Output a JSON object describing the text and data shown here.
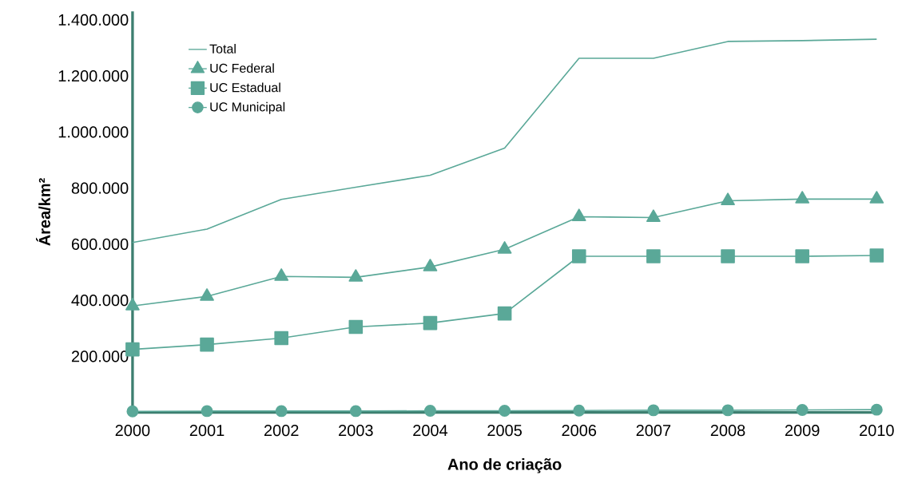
{
  "chart_data": {
    "type": "line",
    "xlabel": "Ano de criação",
    "ylabel": "Área/km²",
    "x": [
      2000,
      2001,
      2002,
      2003,
      2004,
      2005,
      2006,
      2007,
      2008,
      2009,
      2010
    ],
    "series": [
      {
        "name": "Total",
        "color": "#5aa898",
        "marker": "none",
        "values": [
          606000,
          654000,
          760000,
          803000,
          846000,
          943000,
          1263000,
          1263000,
          1323000,
          1326000,
          1331000
        ]
      },
      {
        "name": "UC Federal",
        "color": "#5aa898",
        "marker": "triangle",
        "values": [
          380000,
          414000,
          485000,
          482000,
          519000,
          582000,
          698000,
          695000,
          755000,
          761000,
          761000
        ]
      },
      {
        "name": "UC Estadual",
        "color": "#5aa898",
        "marker": "square",
        "values": [
          225000,
          242000,
          265000,
          305000,
          319000,
          353000,
          557000,
          557000,
          557000,
          557000,
          560000
        ]
      },
      {
        "name": "UC Municipal",
        "color": "#5aa898",
        "marker": "circle",
        "values": [
          4000,
          5000,
          5000,
          5000,
          6000,
          6000,
          7000,
          8000,
          8000,
          9000,
          10000
        ]
      }
    ],
    "xlim": [
      2000,
      2010
    ],
    "ylim": [
      0,
      1430000
    ],
    "xticks": [
      2000,
      2001,
      2002,
      2003,
      2004,
      2005,
      2006,
      2007,
      2008,
      2009,
      2010
    ],
    "yticks": [
      {
        "value": 200000,
        "label": "200.000"
      },
      {
        "value": 400000,
        "label": "400.000"
      },
      {
        "value": 600000,
        "label": "600.000"
      },
      {
        "value": 800000,
        "label": "800.000"
      },
      {
        "value": 1000000,
        "label": "1.000.000"
      },
      {
        "value": 1200000,
        "label": "1.200.000"
      },
      {
        "value": 1400000,
        "label": "1.400.000"
      }
    ],
    "grid": false,
    "legend": "top left",
    "line_style": "solid"
  }
}
